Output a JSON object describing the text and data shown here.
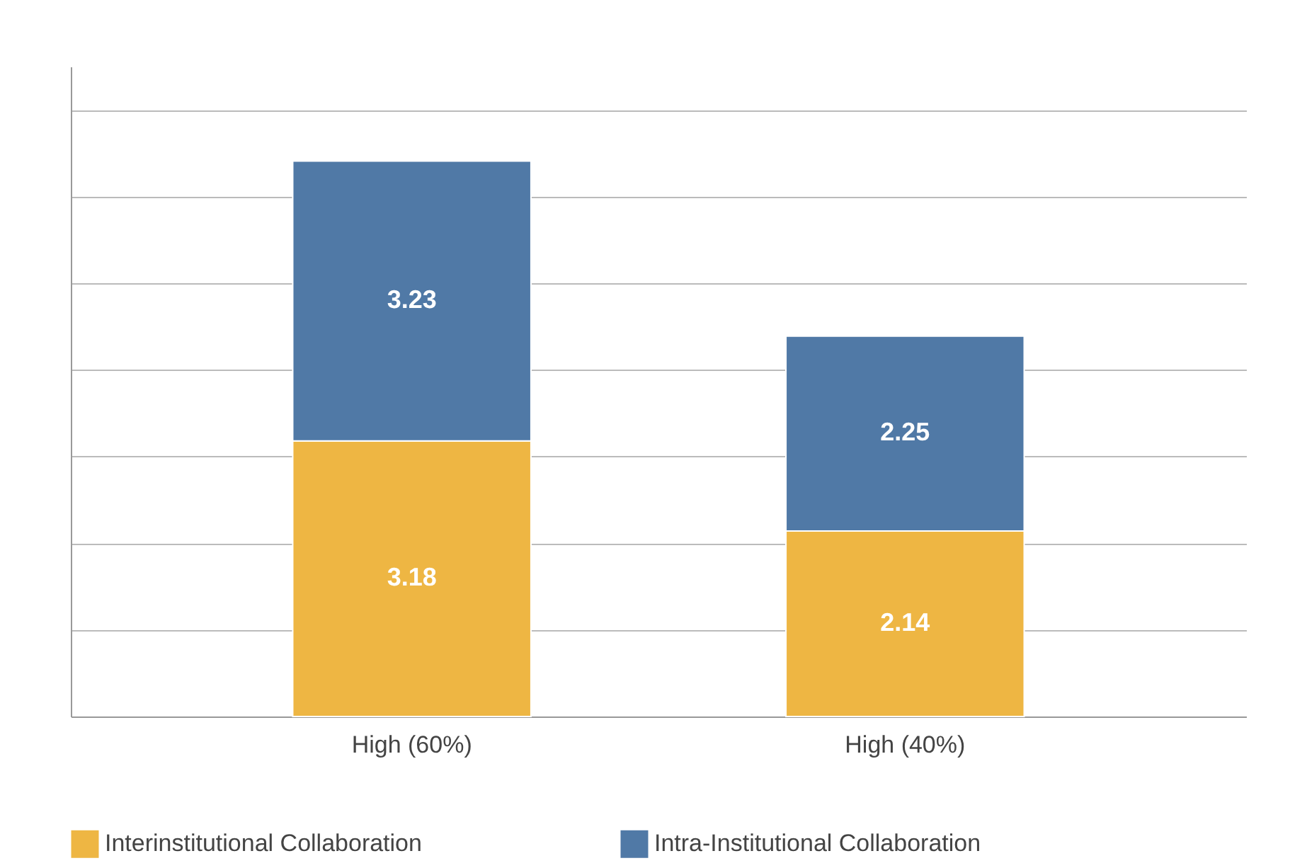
{
  "chart_data": {
    "type": "bar",
    "stacked": true,
    "categories": [
      "High (60%)",
      "High (40%)"
    ],
    "series": [
      {
        "name": "Interinstitutional Collaboration",
        "color": "#eeb643",
        "values": [
          3.18,
          2.14
        ]
      },
      {
        "name": "Intra-Institutional Collaboration",
        "color": "#5079a6",
        "values": [
          3.23,
          2.25
        ]
      }
    ],
    "ylim": [
      0,
      7.5
    ],
    "yticks": [
      {
        "value": 1,
        "label": null
      },
      {
        "value": 2,
        "label": null
      },
      {
        "value": 3,
        "label": null
      },
      {
        "value": 4,
        "label": null
      },
      {
        "value": 5,
        "label": null
      },
      {
        "value": 6,
        "label": null
      },
      {
        "value": 7,
        "label": null
      }
    ],
    "grid": "y",
    "tick_labels": "x",
    "data_labels": true,
    "legend": "bottom"
  }
}
